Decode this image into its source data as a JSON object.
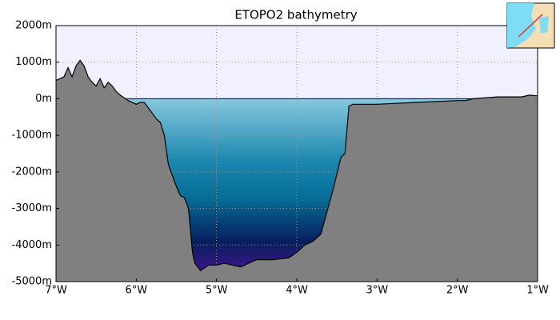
{
  "chart_data": {
    "type": "area",
    "title": "ETOPO2 bathymetry",
    "x": [
      -7.0,
      -6.95,
      -6.9,
      -6.85,
      -6.8,
      -6.75,
      -6.7,
      -6.65,
      -6.6,
      -6.55,
      -6.5,
      -6.45,
      -6.4,
      -6.35,
      -6.3,
      -6.25,
      -6.2,
      -6.1,
      -6.0,
      -5.95,
      -5.9,
      -5.8,
      -5.75,
      -5.7,
      -5.65,
      -5.6,
      -5.5,
      -5.45,
      -5.4,
      -5.35,
      -5.3,
      -5.27,
      -5.2,
      -5.1,
      -5.0,
      -4.9,
      -4.8,
      -4.7,
      -4.6,
      -4.5,
      -4.3,
      -4.1,
      -4.0,
      -3.9,
      -3.8,
      -3.7,
      -3.65,
      -3.55,
      -3.45,
      -3.4,
      -3.35,
      -3.3,
      -3.0,
      -2.5,
      -2.0,
      -1.9,
      -1.8,
      -1.5,
      -1.2,
      -1.1,
      -1.0
    ],
    "values": [
      500,
      550,
      600,
      850,
      600,
      900,
      1050,
      900,
      600,
      450,
      350,
      550,
      300,
      450,
      350,
      200,
      100,
      -50,
      -150,
      -100,
      -100,
      -400,
      -550,
      -650,
      -1000,
      -1800,
      -2400,
      -2650,
      -2700,
      -3000,
      -4200,
      -4500,
      -4700,
      -4550,
      -4550,
      -4500,
      -4550,
      -4600,
      -4500,
      -4400,
      -4400,
      -4350,
      -4200,
      -4000,
      -3900,
      -3700,
      -3300,
      -2500,
      -1600,
      -1500,
      -200,
      -150,
      -150,
      -100,
      -50,
      -50,
      0,
      50,
      50,
      100,
      80
    ],
    "color": "#808080",
    "xlim": [
      -7,
      -1
    ],
    "xticks": [
      {
        "value": -7,
        "label": "7°W"
      },
      {
        "value": -6,
        "label": "6°W"
      },
      {
        "value": -5,
        "label": "5°W"
      },
      {
        "value": -4,
        "label": "4°W"
      },
      {
        "value": -3,
        "label": "3°W"
      },
      {
        "value": -2,
        "label": "2°W"
      },
      {
        "value": -1,
        "label": "1°W"
      }
    ],
    "ylim": [
      -5000,
      2000
    ],
    "yticks": [
      {
        "value": -5000,
        "label": "-5000m"
      },
      {
        "value": -4000,
        "label": "-4000m"
      },
      {
        "value": -3000,
        "label": "-3000m"
      },
      {
        "value": -2000,
        "label": "-2000m"
      },
      {
        "value": -1000,
        "label": "-1000m"
      },
      {
        "value": 0,
        "label": "0m"
      },
      {
        "value": 1000,
        "label": "1000m"
      },
      {
        "value": 2000,
        "label": "2000m"
      }
    ],
    "grid": true
  }
}
